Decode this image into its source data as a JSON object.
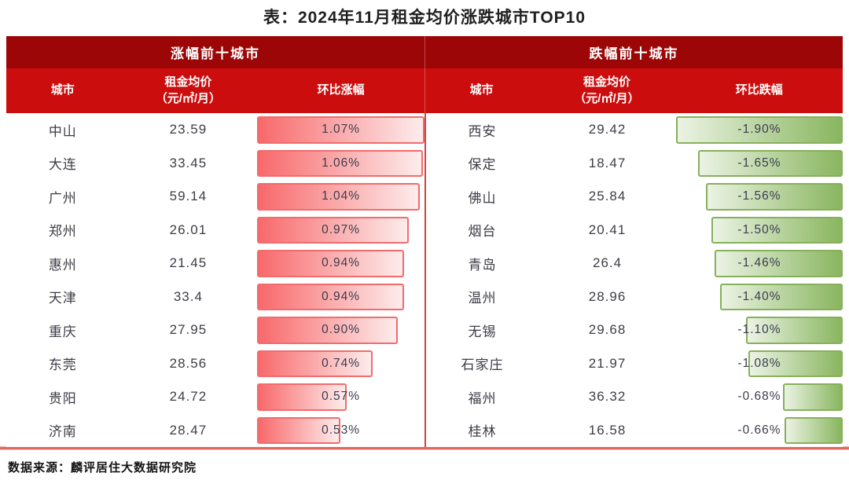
{
  "page": {
    "title": "表：2024年11月租金均价涨跌城市TOP10",
    "source": "数据来源：麟评居住大数据研究院"
  },
  "colors": {
    "header_band": "#9d0606",
    "subheader_band": "#cc0d0d",
    "up_bar_start": "#f8696b",
    "up_bar_end": "#fdecec",
    "up_bar_border": "#f26b6d",
    "down_bar_start": "#ebf3e4",
    "down_bar_end": "#89b65f",
    "down_bar_border": "#87b05c",
    "center_divider": "#c9473c",
    "bottom_rule": "#e2685e"
  },
  "chart_data": {
    "type": "table",
    "title": "表：2024年11月租金均价涨跌城市TOP10",
    "groups": [
      {
        "group_label": "涨幅前十城市",
        "columns": {
          "city": "城市",
          "price": "租金均价\n（元/㎡/月）",
          "change": "环比涨幅"
        },
        "bar_direction": "up",
        "max_abs_change": 1.07,
        "rows": [
          {
            "city": "中山",
            "price": "23.59",
            "change": "1.07%",
            "value": 1.07
          },
          {
            "city": "大连",
            "price": "33.45",
            "change": "1.06%",
            "value": 1.06
          },
          {
            "city": "广州",
            "price": "59.14",
            "change": "1.04%",
            "value": 1.04
          },
          {
            "city": "郑州",
            "price": "26.01",
            "change": "0.97%",
            "value": 0.97
          },
          {
            "city": "惠州",
            "price": "21.45",
            "change": "0.94%",
            "value": 0.94
          },
          {
            "city": "天津",
            "price": "33.4",
            "change": "0.94%",
            "value": 0.94
          },
          {
            "city": "重庆",
            "price": "27.95",
            "change": "0.90%",
            "value": 0.9
          },
          {
            "city": "东莞",
            "price": "28.56",
            "change": "0.74%",
            "value": 0.74
          },
          {
            "city": "贵阳",
            "price": "24.72",
            "change": "0.57%",
            "value": 0.57
          },
          {
            "city": "济南",
            "price": "28.47",
            "change": "0.53%",
            "value": 0.53
          }
        ]
      },
      {
        "group_label": "跌幅前十城市",
        "columns": {
          "city": "城市",
          "price": "租金均价\n（元/㎡/月）",
          "change": "环比跌幅"
        },
        "bar_direction": "down",
        "max_abs_change": 1.9,
        "rows": [
          {
            "city": "西安",
            "price": "29.42",
            "change": "-1.90%",
            "value": -1.9
          },
          {
            "city": "保定",
            "price": "18.47",
            "change": "-1.65%",
            "value": -1.65
          },
          {
            "city": "佛山",
            "price": "25.84",
            "change": "-1.56%",
            "value": -1.56
          },
          {
            "city": "烟台",
            "price": "20.41",
            "change": "-1.50%",
            "value": -1.5
          },
          {
            "city": "青岛",
            "price": "26.4",
            "change": "-1.46%",
            "value": -1.46
          },
          {
            "city": "温州",
            "price": "28.96",
            "change": "-1.40%",
            "value": -1.4
          },
          {
            "city": "无锡",
            "price": "29.68",
            "change": "-1.10%",
            "value": -1.1
          },
          {
            "city": "石家庄",
            "price": "21.97",
            "change": "-1.08%",
            "value": -1.08
          },
          {
            "city": "福州",
            "price": "36.32",
            "change": "-0.68%",
            "value": -0.68
          },
          {
            "city": "桂林",
            "price": "16.58",
            "change": "-0.66%",
            "value": -0.66
          }
        ]
      }
    ]
  }
}
